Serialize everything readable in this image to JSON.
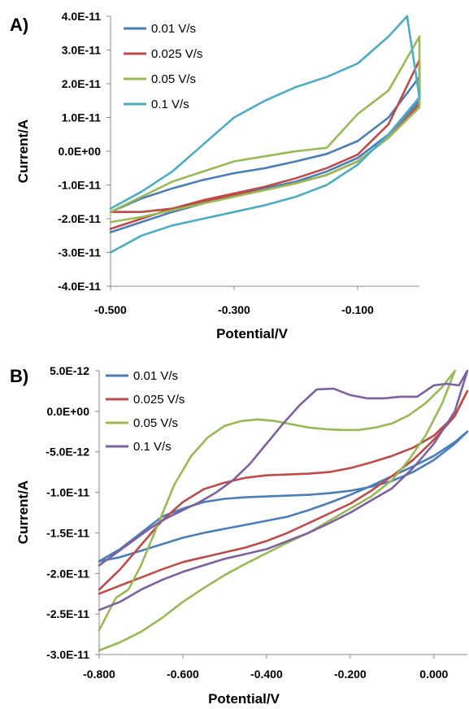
{
  "chart_data": [
    {
      "panel": "A)",
      "type": "line",
      "xlabel": "Potential/V",
      "ylabel": "Current/A",
      "xlim": [
        -0.5,
        0.0
      ],
      "ylim": [
        -4e-11,
        4e-11
      ],
      "xticks": [
        -0.5,
        -0.3,
        -0.1
      ],
      "xtick_labels": [
        "-0.500",
        "-0.300",
        "-0.100"
      ],
      "yticks": [
        4e-11,
        3e-11,
        2e-11,
        1e-11,
        0,
        -1e-11,
        -2e-11,
        -3e-11,
        -4e-11
      ],
      "ytick_labels": [
        "4.0E-11",
        "3.0E-11",
        "2.0E-11",
        "1.0E-11",
        "0.0E+00",
        "-1.0E-11",
        "-2.0E-11",
        "-3.0E-11",
        "-4.0E-11"
      ],
      "grid": false,
      "legend_position": "top-left",
      "series": [
        {
          "name": "0.01 V/s",
          "color": "#4a7ebb",
          "x": [
            -0.5,
            -0.45,
            -0.4,
            -0.35,
            -0.3,
            -0.25,
            -0.2,
            -0.15,
            -0.1,
            -0.05,
            0.0,
            0.0,
            -0.05,
            -0.1,
            -0.15,
            -0.2,
            -0.25,
            -0.3,
            -0.35,
            -0.4,
            -0.45,
            -0.5
          ],
          "y": [
            -1.8e-11,
            -1.4e-11,
            -1.1e-11,
            -8.5e-12,
            -6.5e-12,
            -5e-12,
            -3e-12,
            -8e-13,
            3e-12,
            1e-11,
            2.2e-11,
            1.5e-11,
            5e-12,
            -2e-12,
            -6e-12,
            -9e-12,
            -1.1e-11,
            -1.3e-11,
            -1.55e-11,
            -1.8e-11,
            -2.1e-11,
            -2.4e-11
          ]
        },
        {
          "name": "0.025 V/s",
          "color": "#be4b48",
          "x": [
            -0.5,
            -0.45,
            -0.4,
            -0.35,
            -0.3,
            -0.25,
            -0.2,
            -0.15,
            -0.1,
            -0.05,
            0.0,
            0.0,
            -0.05,
            -0.1,
            -0.15,
            -0.2,
            -0.25,
            -0.3,
            -0.35,
            -0.4,
            -0.45,
            -0.5
          ],
          "y": [
            -2.3e-11,
            -2e-11,
            -1.7e-11,
            -1.45e-11,
            -1.25e-11,
            -1.05e-11,
            -8e-12,
            -5e-12,
            -1e-12,
            8e-12,
            2.7e-11,
            1.4e-11,
            4e-12,
            -3e-12,
            -7e-12,
            -9.5e-12,
            -1.15e-11,
            -1.3e-11,
            -1.5e-11,
            -1.7e-11,
            -1.8e-11,
            -1.8e-11
          ]
        },
        {
          "name": "0.05 V/s",
          "color": "#98b954",
          "x": [
            -0.5,
            -0.45,
            -0.4,
            -0.35,
            -0.3,
            -0.25,
            -0.2,
            -0.15,
            -0.1,
            -0.05,
            0.0,
            0.0,
            -0.05,
            -0.1,
            -0.15,
            -0.2,
            -0.25,
            -0.3,
            -0.35,
            -0.4,
            -0.45,
            -0.5
          ],
          "y": [
            -1.8e-11,
            -1.35e-11,
            -9e-12,
            -6e-12,
            -3e-12,
            -1.5e-12,
            0,
            1e-12,
            1.1e-11,
            1.8e-11,
            3.4e-11,
            1.3e-11,
            4e-12,
            -3e-12,
            -7e-12,
            -9.5e-12,
            -1.15e-11,
            -1.35e-11,
            -1.55e-11,
            -1.75e-11,
            -1.95e-11,
            -2.1e-11
          ]
        },
        {
          "name": "0.1 V/s",
          "color": "#4bacc6",
          "x": [
            -0.5,
            -0.45,
            -0.4,
            -0.35,
            -0.3,
            -0.25,
            -0.2,
            -0.15,
            -0.1,
            -0.05,
            -0.02,
            0.0,
            -0.05,
            -0.1,
            -0.15,
            -0.2,
            -0.25,
            -0.3,
            -0.35,
            -0.4,
            -0.45,
            -0.5
          ],
          "y": [
            -1.7e-11,
            -1.2e-11,
            -6e-12,
            2e-12,
            1e-11,
            1.5e-11,
            1.9e-11,
            2.2e-11,
            2.6e-11,
            3.4e-11,
            4e-11,
            1.6e-11,
            5e-12,
            -4e-12,
            -1e-11,
            -1.35e-11,
            -1.6e-11,
            -1.8e-11,
            -2e-11,
            -2.2e-11,
            -2.5e-11,
            -3e-11
          ]
        }
      ]
    },
    {
      "panel": "B)",
      "type": "line",
      "xlabel": "Potential/V",
      "ylabel": "Current/A",
      "xlim": [
        -0.8,
        0.08
      ],
      "ylim": [
        -3e-11,
        5e-12
      ],
      "xticks": [
        -0.8,
        -0.6,
        -0.4,
        -0.2,
        0.0
      ],
      "xtick_labels": [
        "-0.800",
        "-0.600",
        "-0.400",
        "-0.200",
        "0.000"
      ],
      "yticks": [
        5e-12,
        0,
        -5e-12,
        -1e-11,
        -1.5e-11,
        -2e-11,
        -2.5e-11,
        -3e-11
      ],
      "ytick_labels": [
        "5.0E-12",
        "0.0E+00",
        "-5.0E-12",
        "-1.0E-11",
        "-1.5E-11",
        "-2.0E-11",
        "-2.5E-11",
        "-3.0E-11"
      ],
      "grid": false,
      "legend_position": "top-left",
      "series": [
        {
          "name": "0.01 V/s",
          "color": "#4a7ebb",
          "x": [
            -0.8,
            -0.75,
            -0.7,
            -0.65,
            -0.6,
            -0.55,
            -0.5,
            -0.45,
            -0.4,
            -0.35,
            -0.3,
            -0.25,
            -0.2,
            -0.15,
            -0.1,
            -0.05,
            0.0,
            0.05,
            0.08,
            0.08,
            0.05,
            0.0,
            -0.05,
            -0.1,
            -0.15,
            -0.2,
            -0.25,
            -0.3,
            -0.35,
            -0.4,
            -0.45,
            -0.5,
            -0.55,
            -0.6,
            -0.65,
            -0.7,
            -0.75,
            -0.8
          ],
          "y": [
            -1.85e-11,
            -1.7e-11,
            -1.5e-11,
            -1.3e-11,
            -1.2e-11,
            -1.12e-11,
            -1.08e-11,
            -1.06e-11,
            -1.05e-11,
            -1.04e-11,
            -1.03e-11,
            -1.01e-11,
            -9.8e-12,
            -9.3e-12,
            -8.6e-12,
            -7.5e-12,
            -6e-12,
            -4e-12,
            -2.5e-12,
            -2.5e-12,
            -3.8e-12,
            -5.5e-12,
            -6.8e-12,
            -8e-12,
            -9.2e-12,
            -1.03e-11,
            -1.13e-11,
            -1.22e-11,
            -1.3e-11,
            -1.35e-11,
            -1.4e-11,
            -1.45e-11,
            -1.5e-11,
            -1.56e-11,
            -1.64e-11,
            -1.72e-11,
            -1.8e-11,
            -1.85e-11
          ]
        },
        {
          "name": "0.025 V/s",
          "color": "#be4b48",
          "x": [
            -0.8,
            -0.75,
            -0.7,
            -0.65,
            -0.6,
            -0.55,
            -0.5,
            -0.45,
            -0.4,
            -0.35,
            -0.3,
            -0.25,
            -0.2,
            -0.15,
            -0.1,
            -0.05,
            0.0,
            0.05,
            0.08,
            0.08,
            0.05,
            0.0,
            -0.05,
            -0.1,
            -0.15,
            -0.2,
            -0.25,
            -0.3,
            -0.35,
            -0.4,
            -0.45,
            -0.5,
            -0.55,
            -0.6,
            -0.65,
            -0.7,
            -0.75,
            -0.8
          ],
          "y": [
            -2.2e-11,
            -1.95e-11,
            -1.65e-11,
            -1.35e-11,
            -1.12e-11,
            -9.6e-12,
            -8.8e-12,
            -8.2e-12,
            -7.9e-12,
            -7.8e-12,
            -7.7e-12,
            -7.5e-12,
            -7e-12,
            -6.3e-12,
            -5.5e-12,
            -4.5e-12,
            -3e-12,
            -5e-13,
            2.5e-12,
            2.5e-12,
            -6e-13,
            -3.5e-12,
            -6e-12,
            -8e-12,
            -9.8e-12,
            -1.14e-11,
            -1.26e-11,
            -1.38e-11,
            -1.5e-11,
            -1.6e-11,
            -1.68e-11,
            -1.74e-11,
            -1.8e-11,
            -1.86e-11,
            -1.95e-11,
            -2.05e-11,
            -2.15e-11,
            -2.25e-11
          ]
        },
        {
          "name": "0.05 V/s",
          "color": "#98b954",
          "x": [
            -0.8,
            -0.76,
            -0.73,
            -0.7,
            -0.66,
            -0.62,
            -0.58,
            -0.54,
            -0.5,
            -0.46,
            -0.42,
            -0.38,
            -0.34,
            -0.3,
            -0.26,
            -0.22,
            -0.18,
            -0.14,
            -0.1,
            -0.06,
            -0.02,
            0.02,
            0.05,
            0.05,
            0.02,
            -0.02,
            -0.06,
            -0.1,
            -0.15,
            -0.2,
            -0.25,
            -0.3,
            -0.35,
            -0.4,
            -0.45,
            -0.5,
            -0.55,
            -0.6,
            -0.65,
            -0.7,
            -0.75,
            -0.8
          ],
          "y": [
            -2.7e-11,
            -2.3e-11,
            -2.2e-11,
            -1.9e-11,
            -1.4e-11,
            -9e-12,
            -5.5e-12,
            -3.2e-12,
            -1.8e-12,
            -1.2e-12,
            -1e-12,
            -1.2e-12,
            -1.6e-12,
            -2e-12,
            -2.2e-12,
            -2.3e-12,
            -2.3e-12,
            -2e-12,
            -1.5e-12,
            -5e-13,
            1e-12,
            3e-12,
            5e-12,
            5e-12,
            1e-12,
            -3e-12,
            -6e-12,
            -8.5e-12,
            -1.05e-11,
            -1.2e-11,
            -1.35e-11,
            -1.5e-11,
            -1.62e-11,
            -1.75e-11,
            -1.88e-11,
            -2.02e-11,
            -2.18e-11,
            -2.35e-11,
            -2.55e-11,
            -2.72e-11,
            -2.85e-11,
            -2.95e-11
          ]
        },
        {
          "name": "0.1 V/s",
          "color": "#7d60a0",
          "x": [
            -0.8,
            -0.76,
            -0.72,
            -0.68,
            -0.64,
            -0.6,
            -0.56,
            -0.52,
            -0.48,
            -0.44,
            -0.4,
            -0.36,
            -0.32,
            -0.28,
            -0.24,
            -0.2,
            -0.16,
            -0.12,
            -0.08,
            -0.04,
            0.0,
            0.03,
            0.06,
            0.08,
            0.08,
            0.05,
            0.0,
            -0.05,
            -0.1,
            -0.15,
            -0.2,
            -0.25,
            -0.3,
            -0.35,
            -0.4,
            -0.45,
            -0.5,
            -0.55,
            -0.6,
            -0.65,
            -0.7,
            -0.75,
            -0.8
          ],
          "y": [
            -1.9e-11,
            -1.75e-11,
            -1.6e-11,
            -1.45e-11,
            -1.32e-11,
            -1.22e-11,
            -1.12e-11,
            -1e-11,
            -8.5e-12,
            -6.5e-12,
            -4e-12,
            -1.5e-12,
            8e-13,
            2.7e-12,
            2.8e-12,
            2e-12,
            1.6e-12,
            1.6e-12,
            1.8e-12,
            1.8e-12,
            3.2e-12,
            3.4e-12,
            3.2e-12,
            5e-12,
            5e-12,
            0,
            -4e-12,
            -7e-12,
            -9.5e-12,
            -1.1e-11,
            -1.25e-11,
            -1.38e-11,
            -1.5e-11,
            -1.6e-11,
            -1.7e-11,
            -1.76e-11,
            -1.82e-11,
            -1.9e-11,
            -1.98e-11,
            -2.08e-11,
            -2.2e-11,
            -2.35e-11,
            -2.45e-11
          ]
        }
      ]
    }
  ]
}
